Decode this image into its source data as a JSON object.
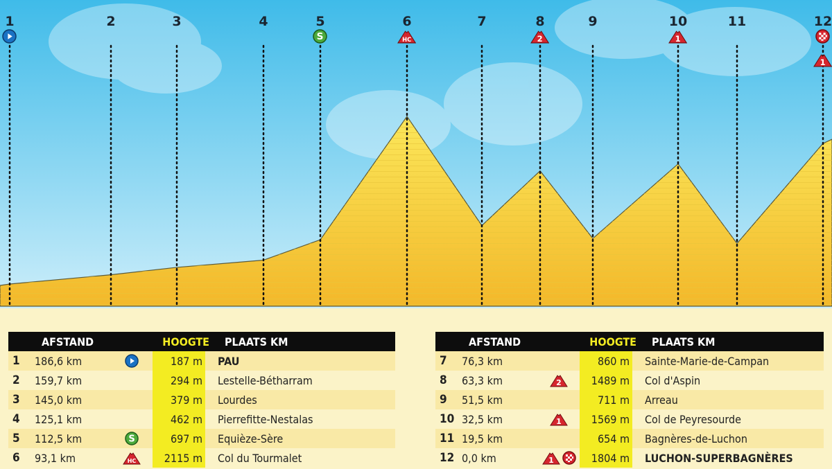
{
  "chart_data": {
    "type": "area",
    "title": "",
    "xlabel": "",
    "ylabel": "",
    "x_unit": "km to finish",
    "y_unit": "m",
    "points": [
      {
        "id": "1",
        "dist_km": 186.6,
        "alt_m": 187,
        "icon": "start"
      },
      {
        "id": "2",
        "dist_km": 159.7,
        "alt_m": 294,
        "icon": ""
      },
      {
        "id": "3",
        "dist_km": 145.0,
        "alt_m": 379,
        "icon": ""
      },
      {
        "id": "4",
        "dist_km": 125.1,
        "alt_m": 462,
        "icon": ""
      },
      {
        "id": "5",
        "dist_km": 112.5,
        "alt_m": 697,
        "icon": "sprint"
      },
      {
        "id": "6",
        "dist_km": 93.1,
        "alt_m": 2115,
        "icon": "HC"
      },
      {
        "id": "7",
        "dist_km": 76.3,
        "alt_m": 860,
        "icon": ""
      },
      {
        "id": "8",
        "dist_km": 63.3,
        "alt_m": 1489,
        "icon": "2"
      },
      {
        "id": "9",
        "dist_km": 51.5,
        "alt_m": 711,
        "icon": ""
      },
      {
        "id": "10",
        "dist_km": 32.5,
        "alt_m": 1569,
        "icon": "1"
      },
      {
        "id": "11",
        "dist_km": 19.5,
        "alt_m": 654,
        "icon": ""
      },
      {
        "id": "12",
        "dist_km": 0.0,
        "alt_m": 1804,
        "icon": "1+finish"
      }
    ],
    "colors": {
      "sky": "#4fc3ec",
      "fill": "#f8d93a",
      "fill_dark": "#f0b324",
      "climb": "#d6262e",
      "sprint": "#4caa3c",
      "start": "#1a72c4"
    }
  },
  "table": {
    "headers": {
      "distance": "AFSTAND",
      "altitude": "HOOGTE",
      "place": "PLAATS KM"
    },
    "left": [
      {
        "n": "1",
        "dist": "186,6 km",
        "icons": [
          "start"
        ],
        "alt": "187 m",
        "place": "PAU",
        "bold": true
      },
      {
        "n": "2",
        "dist": "159,7 km",
        "icons": [],
        "alt": "294 m",
        "place": "Lestelle-Bétharram"
      },
      {
        "n": "3",
        "dist": "145,0 km",
        "icons": [],
        "alt": "379 m",
        "place": "Lourdes"
      },
      {
        "n": "4",
        "dist": "125,1 km",
        "icons": [],
        "alt": "462 m",
        "place": "Pierrefitte-Nestalas"
      },
      {
        "n": "5",
        "dist": "112,5 km",
        "icons": [
          "sprint"
        ],
        "alt": "697 m",
        "place": "Equièze-Sère"
      },
      {
        "n": "6",
        "dist": "93,1 km",
        "icons": [
          "HC"
        ],
        "alt": "2115 m",
        "place": "Col du Tourmalet"
      }
    ],
    "right": [
      {
        "n": "7",
        "dist": "76,3 km",
        "icons": [],
        "alt": "860 m",
        "place": "Sainte-Marie-de-Campan"
      },
      {
        "n": "8",
        "dist": "63,3 km",
        "icons": [
          "2"
        ],
        "alt": "1489 m",
        "place": "Col d'Aspin"
      },
      {
        "n": "9",
        "dist": "51,5 km",
        "icons": [],
        "alt": "711 m",
        "place": "Arreau"
      },
      {
        "n": "10",
        "dist": "32,5 km",
        "icons": [
          "1"
        ],
        "alt": "1569 m",
        "place": "Col de Peyresourde"
      },
      {
        "n": "11",
        "dist": "19,5 km",
        "icons": [],
        "alt": "654 m",
        "place": "Bagnères-de-Luchon"
      },
      {
        "n": "12",
        "dist": "0,0 km",
        "icons": [
          "1",
          "finish"
        ],
        "alt": "1804 m",
        "place": "LUCHON-SUPERBAGNÈRES",
        "bold": true
      }
    ]
  }
}
